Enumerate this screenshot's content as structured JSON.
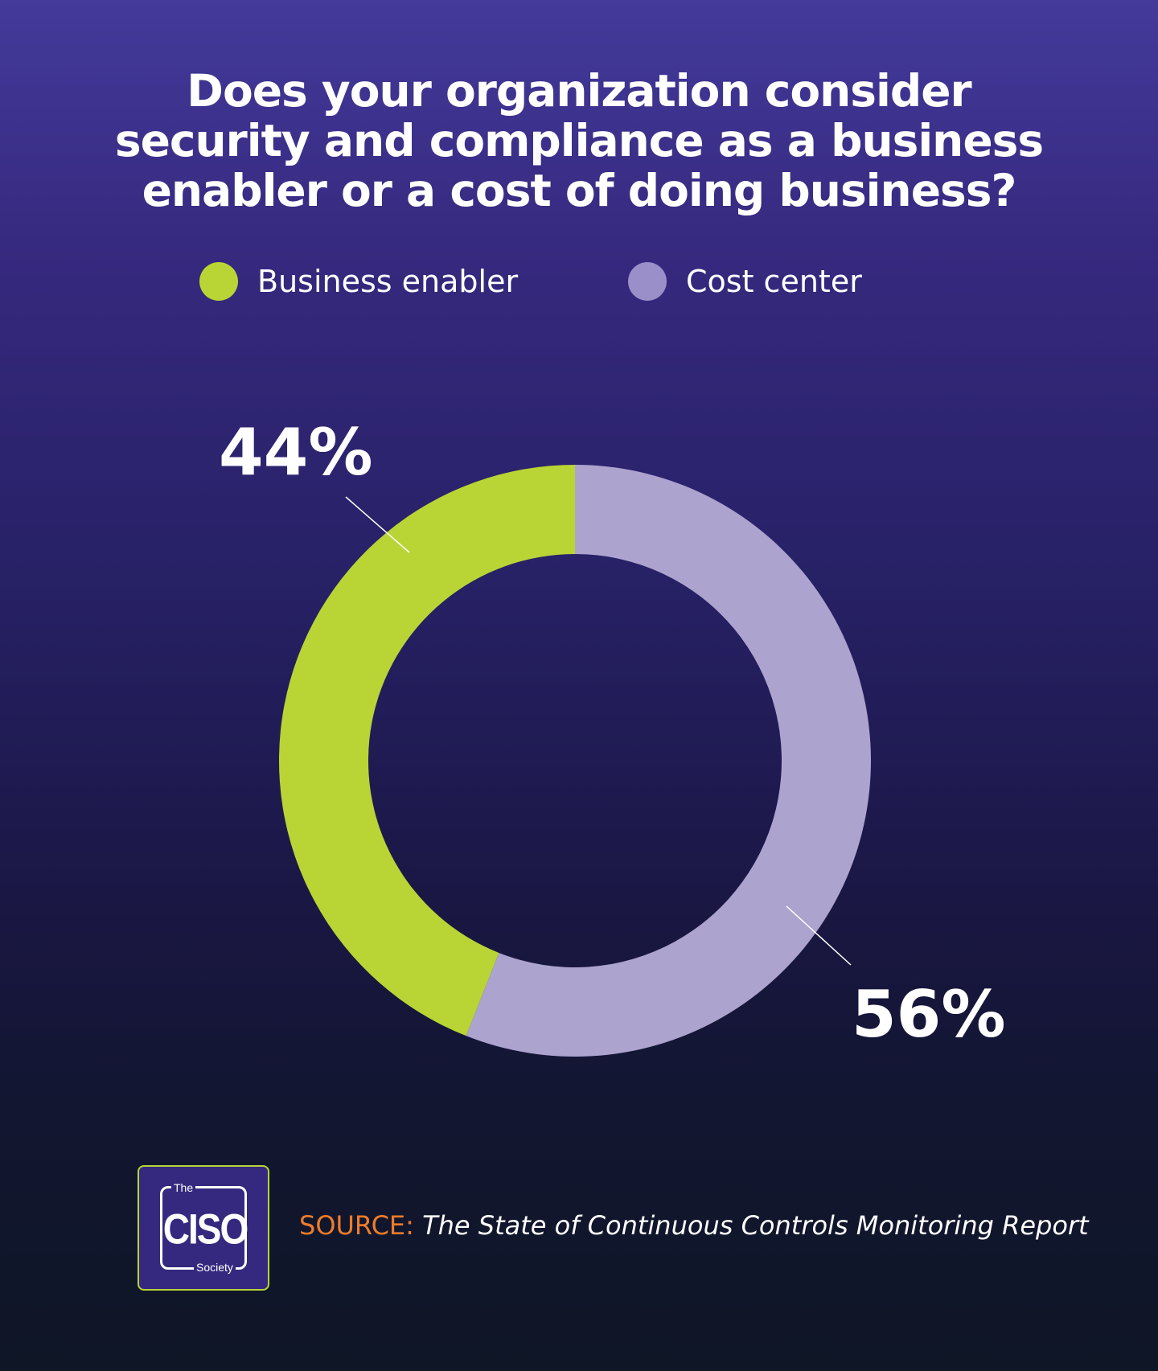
{
  "colors": {
    "business_enabler": "#b9d535",
    "cost_center": "#ada3cf",
    "cost_center_legend": "#9a8fc9",
    "source_prefix": "#ee7c2a",
    "logo_border": "#b7d435",
    "logo_bg": "#35297f"
  },
  "chart_data": {
    "type": "pie",
    "title": "Does your organization consider security and compliance as a business enabler or a cost of doing business?",
    "title_lines": [
      "Does your organization consider",
      "security and compliance as a business",
      "enabler or a cost of doing business?"
    ],
    "donut": true,
    "legend_position": "top",
    "series": [
      {
        "name": "Business enabler",
        "value": 44,
        "label": "44%"
      },
      {
        "name": "Cost center",
        "value": 56,
        "label": "56%"
      }
    ]
  },
  "logo": {
    "the": "The",
    "ciso": "CISO",
    "society": "Society"
  },
  "source": {
    "prefix": "SOURCE:",
    "report": "The State of Continuous Controls Monitoring Report"
  }
}
